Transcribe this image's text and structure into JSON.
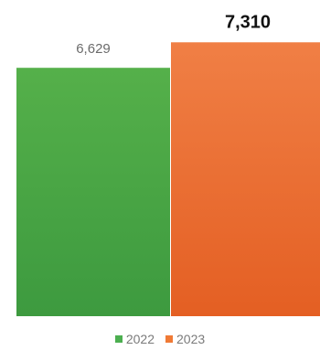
{
  "chart_data": {
    "type": "bar",
    "categories": [
      "2022",
      "2023"
    ],
    "values": [
      6629,
      7310
    ],
    "value_labels": [
      "6,629",
      "7,310"
    ],
    "colors": [
      "#4caf50",
      "#f07a35"
    ],
    "ylim": [
      0,
      8000
    ],
    "grid": false,
    "legend_placement": "bottom"
  },
  "legend": {
    "items": [
      {
        "label": "2022",
        "color": "#4caf50"
      },
      {
        "label": "2023",
        "color": "#f07a35"
      }
    ]
  }
}
